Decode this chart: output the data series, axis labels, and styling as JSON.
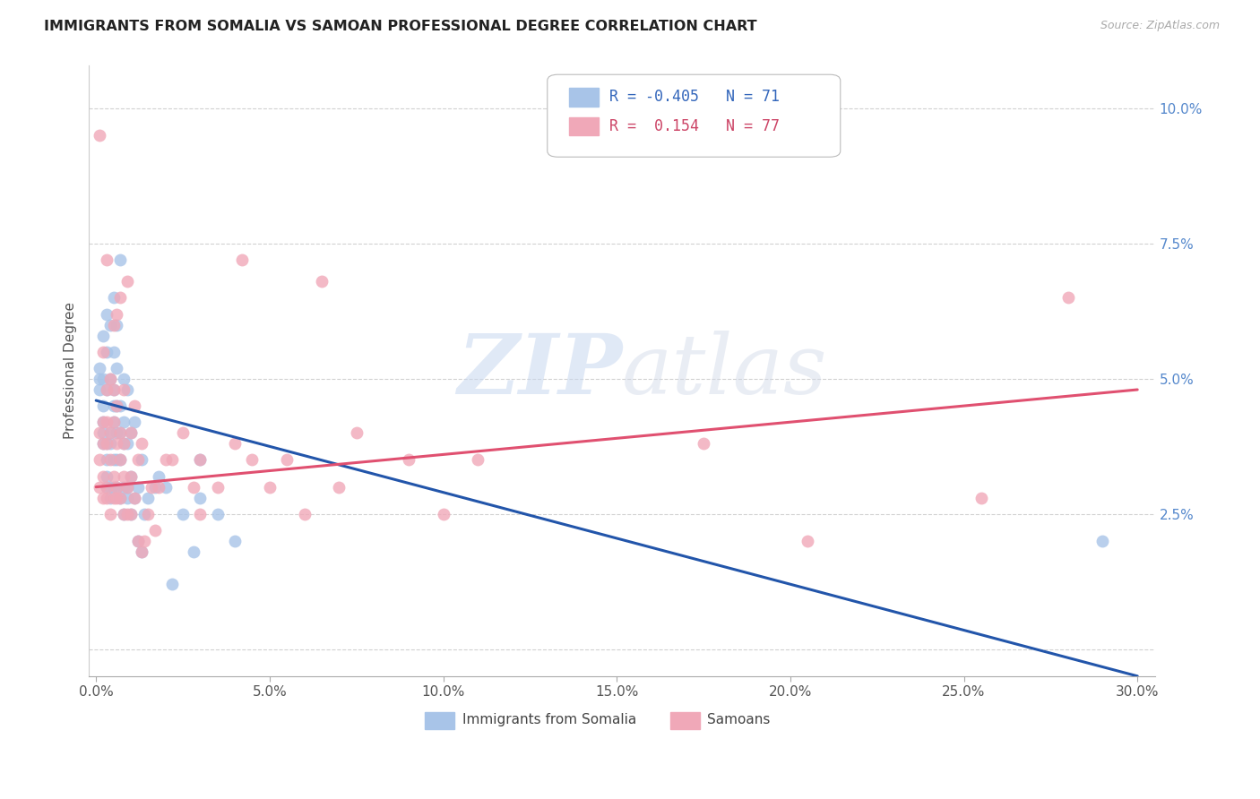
{
  "title": "IMMIGRANTS FROM SOMALIA VS SAMOAN PROFESSIONAL DEGREE CORRELATION CHART",
  "source": "Source: ZipAtlas.com",
  "ylabel": "Professional Degree",
  "ytick_labels": [
    "",
    "2.5%",
    "5.0%",
    "7.5%",
    "10.0%"
  ],
  "ytick_values": [
    0.0,
    0.025,
    0.05,
    0.075,
    0.1
  ],
  "xtick_values": [
    0.0,
    0.05,
    0.1,
    0.15,
    0.2,
    0.25,
    0.3
  ],
  "xlim": [
    -0.002,
    0.305
  ],
  "ylim": [
    -0.005,
    0.108
  ],
  "legend_label_blue": "Immigrants from Somalia",
  "legend_label_pink": "Samoans",
  "color_blue": "#A8C4E8",
  "color_pink": "#F0A8B8",
  "color_line_blue": "#2255AA",
  "color_line_pink": "#E05070",
  "watermark_zip": "ZIP",
  "watermark_atlas": "atlas",
  "blue_line_x0": 0.0,
  "blue_line_y0": 0.046,
  "blue_line_x1": 0.3,
  "blue_line_y1": -0.005,
  "pink_line_x0": 0.0,
  "pink_line_y0": 0.03,
  "pink_line_x1": 0.3,
  "pink_line_y1": 0.048,
  "blue_x": [
    0.001,
    0.001,
    0.001,
    0.002,
    0.002,
    0.002,
    0.002,
    0.002,
    0.002,
    0.003,
    0.003,
    0.003,
    0.003,
    0.003,
    0.003,
    0.003,
    0.004,
    0.004,
    0.004,
    0.004,
    0.004,
    0.004,
    0.005,
    0.005,
    0.005,
    0.005,
    0.005,
    0.005,
    0.005,
    0.006,
    0.006,
    0.006,
    0.006,
    0.006,
    0.006,
    0.007,
    0.007,
    0.007,
    0.007,
    0.007,
    0.008,
    0.008,
    0.008,
    0.008,
    0.008,
    0.009,
    0.009,
    0.009,
    0.009,
    0.01,
    0.01,
    0.01,
    0.011,
    0.011,
    0.012,
    0.012,
    0.013,
    0.013,
    0.014,
    0.015,
    0.017,
    0.018,
    0.02,
    0.022,
    0.025,
    0.028,
    0.03,
    0.03,
    0.035,
    0.04,
    0.29
  ],
  "blue_y": [
    0.048,
    0.05,
    0.052,
    0.038,
    0.04,
    0.042,
    0.045,
    0.05,
    0.058,
    0.03,
    0.032,
    0.035,
    0.038,
    0.048,
    0.055,
    0.062,
    0.028,
    0.03,
    0.038,
    0.04,
    0.05,
    0.06,
    0.03,
    0.035,
    0.042,
    0.045,
    0.048,
    0.055,
    0.065,
    0.03,
    0.035,
    0.04,
    0.045,
    0.052,
    0.06,
    0.028,
    0.035,
    0.04,
    0.045,
    0.072,
    0.025,
    0.03,
    0.038,
    0.042,
    0.05,
    0.028,
    0.03,
    0.038,
    0.048,
    0.025,
    0.032,
    0.04,
    0.028,
    0.042,
    0.02,
    0.03,
    0.018,
    0.035,
    0.025,
    0.028,
    0.03,
    0.032,
    0.03,
    0.012,
    0.025,
    0.018,
    0.028,
    0.035,
    0.025,
    0.02,
    0.02
  ],
  "pink_x": [
    0.001,
    0.001,
    0.001,
    0.001,
    0.002,
    0.002,
    0.002,
    0.002,
    0.002,
    0.003,
    0.003,
    0.003,
    0.003,
    0.003,
    0.003,
    0.004,
    0.004,
    0.004,
    0.004,
    0.005,
    0.005,
    0.005,
    0.005,
    0.005,
    0.006,
    0.006,
    0.006,
    0.006,
    0.006,
    0.007,
    0.007,
    0.007,
    0.007,
    0.008,
    0.008,
    0.008,
    0.008,
    0.009,
    0.009,
    0.009,
    0.01,
    0.01,
    0.01,
    0.011,
    0.011,
    0.012,
    0.012,
    0.013,
    0.013,
    0.014,
    0.015,
    0.016,
    0.017,
    0.018,
    0.02,
    0.022,
    0.025,
    0.028,
    0.03,
    0.03,
    0.035,
    0.04,
    0.042,
    0.045,
    0.05,
    0.055,
    0.06,
    0.065,
    0.07,
    0.075,
    0.09,
    0.1,
    0.11,
    0.175,
    0.205,
    0.255,
    0.28
  ],
  "pink_y": [
    0.03,
    0.035,
    0.04,
    0.095,
    0.028,
    0.032,
    0.038,
    0.042,
    0.055,
    0.028,
    0.03,
    0.038,
    0.042,
    0.048,
    0.072,
    0.025,
    0.035,
    0.04,
    0.05,
    0.028,
    0.032,
    0.042,
    0.048,
    0.06,
    0.028,
    0.03,
    0.038,
    0.045,
    0.062,
    0.028,
    0.035,
    0.04,
    0.065,
    0.025,
    0.032,
    0.038,
    0.048,
    0.025,
    0.03,
    0.068,
    0.025,
    0.032,
    0.04,
    0.028,
    0.045,
    0.02,
    0.035,
    0.018,
    0.038,
    0.02,
    0.025,
    0.03,
    0.022,
    0.03,
    0.035,
    0.035,
    0.04,
    0.03,
    0.025,
    0.035,
    0.03,
    0.038,
    0.072,
    0.035,
    0.03,
    0.035,
    0.025,
    0.068,
    0.03,
    0.04,
    0.035,
    0.025,
    0.035,
    0.038,
    0.02,
    0.028,
    0.065
  ]
}
